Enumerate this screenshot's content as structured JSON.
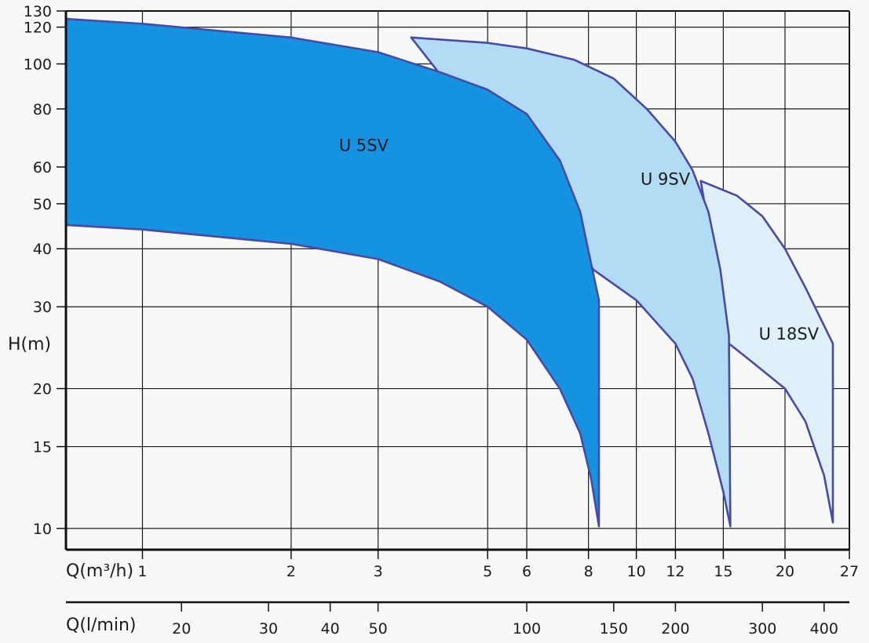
{
  "chart_data": {
    "type": "area",
    "title": "",
    "ylabel": "H(m)",
    "xlabel": "Q(m³/h)",
    "x2label": "Q(l/min)",
    "x_scale": "log",
    "y_scale": "log",
    "xlim": [
      0.7,
      27
    ],
    "ylim": [
      9,
      130
    ],
    "x2lim": [
      11.67,
      450
    ],
    "grid": true,
    "x_ticks": [
      {
        "value": 1,
        "label": "1"
      },
      {
        "value": 2,
        "label": "2"
      },
      {
        "value": 3,
        "label": "3"
      },
      {
        "value": 5,
        "label": "5"
      },
      {
        "value": 6,
        "label": "6"
      },
      {
        "value": 8,
        "label": "8"
      },
      {
        "value": 10,
        "label": "10"
      },
      {
        "value": 12,
        "label": "12"
      },
      {
        "value": 15,
        "label": "15"
      },
      {
        "value": 20,
        "label": "20"
      },
      {
        "value": 27,
        "label": "27"
      }
    ],
    "x_grid": [
      1,
      2,
      3,
      5,
      6,
      8,
      10,
      12,
      15,
      20
    ],
    "y_ticks": [
      {
        "value": 10,
        "label": "10"
      },
      {
        "value": 15,
        "label": "15"
      },
      {
        "value": 20,
        "label": "20"
      },
      {
        "value": 30,
        "label": "30"
      },
      {
        "value": 40,
        "label": "40"
      },
      {
        "value": 50,
        "label": "50"
      },
      {
        "value": 60,
        "label": "60"
      },
      {
        "value": 80,
        "label": "80"
      },
      {
        "value": 100,
        "label": "100"
      },
      {
        "value": 120,
        "label": "120"
      },
      {
        "value": 130,
        "label": "130"
      }
    ],
    "y_grid": [
      10,
      15,
      20,
      30,
      40,
      50,
      60,
      80,
      100,
      120
    ],
    "x2_ticks": [
      {
        "value": 20,
        "label": "20"
      },
      {
        "value": 30,
        "label": "30"
      },
      {
        "value": 40,
        "label": "40"
      },
      {
        "value": 50,
        "label": "50"
      },
      {
        "value": 100,
        "label": "100"
      },
      {
        "value": 150,
        "label": "150"
      },
      {
        "value": 200,
        "label": "200"
      },
      {
        "value": 300,
        "label": "300"
      },
      {
        "value": 400,
        "label": "400"
      }
    ],
    "series": [
      {
        "name": "U 18SV",
        "label_at": {
          "x": 17.7,
          "y": 25.5
        },
        "fill": "#dff0fa",
        "stroke": "#4a4aa6",
        "upper": [
          [
            13.5,
            56
          ],
          [
            16,
            52
          ],
          [
            18,
            47
          ],
          [
            20,
            40
          ],
          [
            22,
            33
          ],
          [
            25,
            25
          ]
        ],
        "lower": [
          [
            15.4,
            25
          ],
          [
            17,
            23
          ],
          [
            20,
            20
          ],
          [
            22,
            17
          ],
          [
            24,
            13
          ],
          [
            25,
            10.3
          ]
        ]
      },
      {
        "name": "U 9SV",
        "label_at": {
          "x": 10.2,
          "y": 55
        },
        "fill": "#b2dcf4",
        "stroke": "#4a4aa6",
        "upper": [
          [
            3.5,
            114
          ],
          [
            5,
            111
          ],
          [
            6,
            108
          ],
          [
            7.5,
            102
          ],
          [
            9,
            93
          ],
          [
            10.5,
            80
          ],
          [
            12,
            68
          ],
          [
            13,
            59
          ],
          [
            14,
            48
          ],
          [
            14.8,
            36
          ],
          [
            15.4,
            26
          ],
          [
            15.5,
            10.1
          ]
        ],
        "lower": [
          [
            8.2,
            36
          ],
          [
            10,
            31
          ],
          [
            12,
            25
          ],
          [
            13,
            21
          ],
          [
            14,
            16
          ],
          [
            15,
            12
          ],
          [
            15.5,
            10.1
          ]
        ]
      },
      {
        "name": "U 5SV",
        "label_at": {
          "x": 2.5,
          "y": 65
        },
        "fill": "#1592e0",
        "stroke": "#4a4aa6",
        "upper": [
          [
            0.7,
            125
          ],
          [
            1,
            122
          ],
          [
            2,
            114
          ],
          [
            3,
            106
          ],
          [
            4,
            96
          ],
          [
            5,
            88
          ],
          [
            6,
            78
          ],
          [
            7,
            62
          ],
          [
            7.7,
            48
          ],
          [
            8.15,
            36
          ],
          [
            8.4,
            31
          ],
          [
            8.4,
            10.1
          ]
        ],
        "lower": [
          [
            0.7,
            45
          ],
          [
            1,
            44
          ],
          [
            2,
            41
          ],
          [
            3,
            38
          ],
          [
            4,
            34
          ],
          [
            5,
            30
          ],
          [
            6,
            25.5
          ],
          [
            7,
            20
          ],
          [
            7.7,
            16
          ],
          [
            8.1,
            12.8
          ],
          [
            8.4,
            10.1
          ]
        ]
      }
    ]
  }
}
